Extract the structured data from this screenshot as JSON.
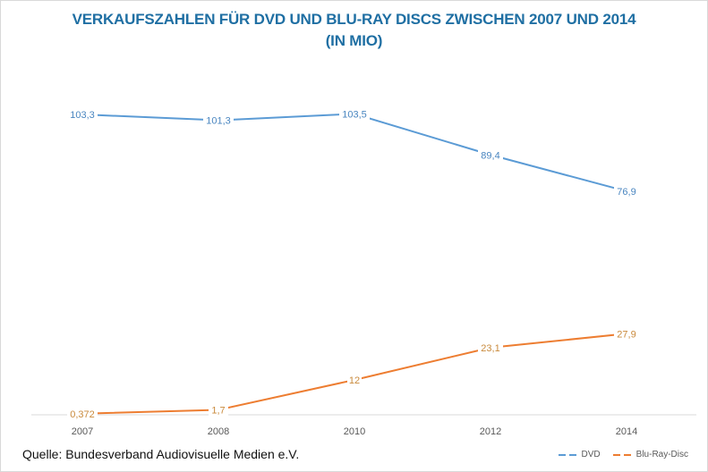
{
  "chart_data": {
    "type": "line",
    "title": "VERKAUFSZAHLEN FÜR DVD UND BLU-RAY DISCS ZWISCHEN 2007 UND 2014",
    "subtitle": "(IN MIO)",
    "categories": [
      "2007",
      "2008",
      "2010",
      "2012",
      "2014"
    ],
    "series": [
      {
        "name": "DVD",
        "color": "#5b9bd5",
        "values": [
          103.3,
          101.3,
          103.5,
          89.4,
          76.9
        ],
        "labels": [
          "103,3",
          "101,3",
          "103,5",
          "89,4",
          "76,9"
        ]
      },
      {
        "name": "Blu-Ray-Disc",
        "color": "#ed7d31",
        "values": [
          0.372,
          1.7,
          12,
          23.1,
          27.9
        ],
        "labels": [
          "0,372",
          "1,7",
          "12",
          "23,1",
          "27,9"
        ]
      }
    ],
    "xlabel": "",
    "ylabel": "",
    "ylim": [
      0,
      115
    ],
    "grid": false,
    "y_axis_visible": false,
    "legend_position": "bottom-right",
    "source": "Quelle: Bundesverband Audiovisuelle Medien e.V."
  }
}
